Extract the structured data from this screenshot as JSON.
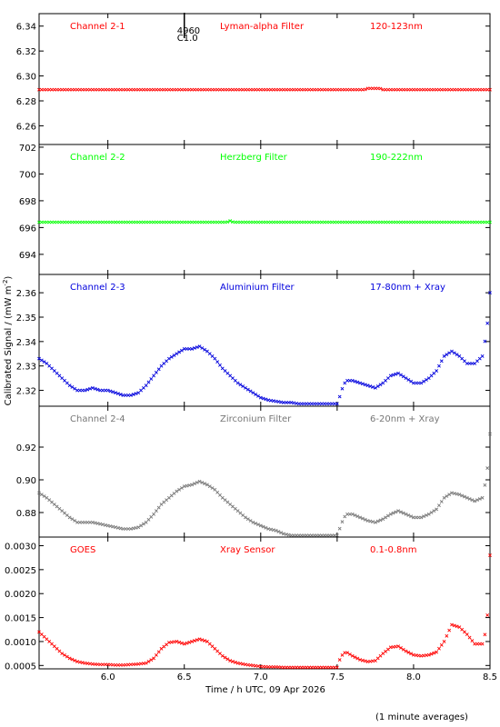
{
  "x_axis": {
    "label": "Time / h UTC, 09 Apr 2026",
    "range": [
      5.55,
      8.5
    ],
    "ticks": [
      "6.0",
      "6.5",
      "7.0",
      "7.5",
      "8.0",
      "8.5"
    ],
    "tick_values": [
      6.0,
      6.5,
      7.0,
      7.5,
      8.0,
      8.5
    ]
  },
  "y_axis_label": "Calibrated Signal / (mW m",
  "y_axis_label_sup": "-2",
  "y_axis_label_end": ")",
  "footnote": "(1 minute averages)",
  "flare_marker": {
    "time": 6.5,
    "number": "4960",
    "class": "C1.0"
  },
  "chart_data": [
    {
      "type": "scatter",
      "channel": "Channel 2-1",
      "filter": "Lyman-alpha Filter",
      "band": "120-123nm",
      "color": "#ff0000",
      "ylim": [
        6.245,
        6.35
      ],
      "yticks": [
        "6.26",
        "6.28",
        "6.30",
        "6.32",
        "6.34"
      ],
      "ytick_values": [
        6.26,
        6.28,
        6.3,
        6.32,
        6.34
      ],
      "x": [
        5.55,
        6.0,
        6.5,
        7.0,
        7.5,
        7.68,
        7.7,
        7.72,
        7.75,
        7.78,
        7.8,
        8.0,
        8.5
      ],
      "y": [
        6.289,
        6.289,
        6.289,
        6.289,
        6.289,
        6.289,
        6.29,
        6.29,
        6.29,
        6.29,
        6.289,
        6.289,
        6.289
      ]
    },
    {
      "type": "scatter",
      "channel": "Channel 2-2",
      "filter": "Herzberg Filter",
      "band": "190-222nm",
      "color": "#00ff00",
      "ylim": [
        692.5,
        702.2
      ],
      "yticks": [
        "694",
        "696",
        "698",
        "700",
        "702"
      ],
      "ytick_values": [
        694,
        696,
        698,
        700,
        702
      ],
      "x": [
        5.55,
        6.0,
        6.5,
        6.78,
        6.8,
        6.82,
        7.0,
        7.5,
        8.0,
        8.5
      ],
      "y": [
        696.4,
        696.4,
        696.4,
        696.4,
        696.5,
        696.4,
        696.4,
        696.4,
        696.4,
        696.4
      ]
    },
    {
      "type": "scatter",
      "channel": "Channel 2-3",
      "filter": "Aluminium Filter",
      "band": "17-80nm + Xray",
      "color": "#0000dd",
      "ylim": [
        2.3135,
        2.3675
      ],
      "yticks": [
        "2.32",
        "2.33",
        "2.34",
        "2.35",
        "2.36"
      ],
      "ytick_values": [
        2.32,
        2.33,
        2.34,
        2.35,
        2.36
      ],
      "x": [
        5.55,
        5.6,
        5.65,
        5.7,
        5.75,
        5.8,
        5.85,
        5.9,
        5.95,
        6.0,
        6.05,
        6.1,
        6.15,
        6.2,
        6.25,
        6.3,
        6.35,
        6.4,
        6.45,
        6.5,
        6.55,
        6.6,
        6.65,
        6.7,
        6.75,
        6.8,
        6.85,
        6.9,
        6.95,
        7.0,
        7.05,
        7.1,
        7.15,
        7.2,
        7.25,
        7.3,
        7.35,
        7.4,
        7.45,
        7.5,
        7.52,
        7.54,
        7.56,
        7.6,
        7.65,
        7.7,
        7.75,
        7.8,
        7.85,
        7.9,
        7.95,
        8.0,
        8.05,
        8.1,
        8.15,
        8.2,
        8.25,
        8.3,
        8.35,
        8.4,
        8.45,
        8.48,
        8.5
      ],
      "y": [
        2.333,
        2.331,
        2.328,
        2.325,
        2.322,
        2.32,
        2.32,
        2.321,
        2.32,
        2.32,
        2.319,
        2.318,
        2.318,
        2.319,
        2.322,
        2.326,
        2.33,
        2.333,
        2.335,
        2.337,
        2.337,
        2.338,
        2.336,
        2.333,
        2.329,
        2.326,
        2.323,
        2.321,
        2.319,
        2.317,
        2.316,
        2.3155,
        2.315,
        2.315,
        2.3145,
        2.3145,
        2.3145,
        2.3145,
        2.3145,
        2.3145,
        2.318,
        2.322,
        2.324,
        2.324,
        2.323,
        2.322,
        2.321,
        2.323,
        2.326,
        2.327,
        2.325,
        2.323,
        2.323,
        2.325,
        2.328,
        2.334,
        2.336,
        2.334,
        2.331,
        2.331,
        2.334,
        2.345,
        2.36
      ]
    },
    {
      "type": "scatter",
      "channel": "Channel 2-4",
      "filter": "Zirconium Filter",
      "band": "6-20nm + Xray",
      "color": "#777777",
      "ylim": [
        0.865,
        0.945
      ],
      "yticks": [
        "0.88",
        "0.90",
        "0.92"
      ],
      "ytick_values": [
        0.88,
        0.9,
        0.92
      ],
      "x": [
        5.55,
        5.6,
        5.65,
        5.7,
        5.75,
        5.8,
        5.85,
        5.9,
        5.95,
        6.0,
        6.05,
        6.1,
        6.15,
        6.2,
        6.25,
        6.3,
        6.35,
        6.4,
        6.45,
        6.5,
        6.55,
        6.6,
        6.65,
        6.7,
        6.75,
        6.8,
        6.85,
        6.9,
        6.95,
        7.0,
        7.05,
        7.1,
        7.15,
        7.2,
        7.25,
        7.3,
        7.35,
        7.4,
        7.45,
        7.5,
        7.52,
        7.54,
        7.56,
        7.6,
        7.65,
        7.7,
        7.75,
        7.8,
        7.85,
        7.9,
        7.95,
        8.0,
        8.05,
        8.1,
        8.15,
        8.2,
        8.25,
        8.3,
        8.35,
        8.4,
        8.45,
        8.48,
        8.5
      ],
      "y": [
        0.892,
        0.889,
        0.885,
        0.881,
        0.877,
        0.874,
        0.874,
        0.874,
        0.873,
        0.872,
        0.871,
        0.87,
        0.87,
        0.871,
        0.874,
        0.879,
        0.885,
        0.889,
        0.893,
        0.896,
        0.897,
        0.899,
        0.897,
        0.894,
        0.889,
        0.885,
        0.881,
        0.877,
        0.874,
        0.872,
        0.87,
        0.869,
        0.867,
        0.866,
        0.866,
        0.866,
        0.866,
        0.866,
        0.866,
        0.866,
        0.871,
        0.876,
        0.879,
        0.879,
        0.877,
        0.875,
        0.874,
        0.876,
        0.879,
        0.881,
        0.879,
        0.877,
        0.877,
        0.879,
        0.882,
        0.889,
        0.892,
        0.891,
        0.889,
        0.887,
        0.889,
        0.903,
        0.928
      ]
    },
    {
      "type": "scatter",
      "channel": "GOES",
      "filter": "Xray Sensor",
      "band": "0.1-0.8nm",
      "color": "#ff0000",
      "ylim": [
        0.00043,
        0.00318
      ],
      "yticks": [
        "0.0005",
        "0.0010",
        "0.0015",
        "0.0020",
        "0.0025",
        "0.0030"
      ],
      "ytick_values": [
        0.0005,
        0.001,
        0.0015,
        0.002,
        0.0025,
        0.003
      ],
      "x": [
        5.55,
        5.6,
        5.65,
        5.7,
        5.75,
        5.8,
        5.85,
        5.9,
        5.95,
        6.0,
        6.05,
        6.1,
        6.15,
        6.2,
        6.25,
        6.3,
        6.35,
        6.4,
        6.45,
        6.5,
        6.55,
        6.6,
        6.65,
        6.7,
        6.75,
        6.8,
        6.85,
        6.9,
        6.95,
        7.0,
        7.05,
        7.1,
        7.15,
        7.2,
        7.25,
        7.3,
        7.35,
        7.4,
        7.45,
        7.5,
        7.52,
        7.54,
        7.56,
        7.6,
        7.65,
        7.7,
        7.75,
        7.8,
        7.85,
        7.9,
        7.95,
        8.0,
        8.05,
        8.1,
        8.15,
        8.2,
        8.25,
        8.3,
        8.35,
        8.4,
        8.45,
        8.48,
        8.5
      ],
      "y": [
        0.0012,
        0.00105,
        0.0009,
        0.00075,
        0.00065,
        0.00058,
        0.00055,
        0.00053,
        0.00052,
        0.00052,
        0.00051,
        0.00051,
        0.00052,
        0.00053,
        0.00055,
        0.00065,
        0.00085,
        0.00098,
        0.001,
        0.00095,
        0.001,
        0.00105,
        0.001,
        0.00085,
        0.0007,
        0.0006,
        0.00055,
        0.00052,
        0.0005,
        0.00048,
        0.00047,
        0.00047,
        0.00046,
        0.00046,
        0.00046,
        0.00046,
        0.00046,
        0.00046,
        0.00046,
        0.00046,
        0.00065,
        0.00075,
        0.00078,
        0.0007,
        0.00062,
        0.00058,
        0.0006,
        0.00075,
        0.00088,
        0.0009,
        0.0008,
        0.00072,
        0.0007,
        0.00072,
        0.00078,
        0.001,
        0.00135,
        0.0013,
        0.00115,
        0.00095,
        0.00095,
        0.0013,
        0.0028
      ]
    }
  ]
}
